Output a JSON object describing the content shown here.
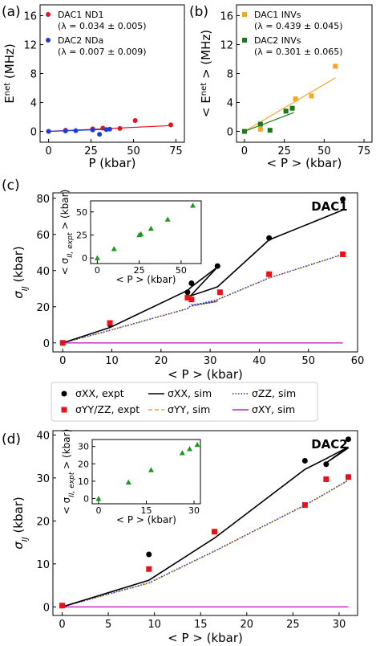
{
  "figure": {
    "panel_labels": [
      "(a)",
      "(b)",
      "(c)",
      "(d)"
    ],
    "legend_cd": [
      {
        "text": "σXX, expt",
        "color": "#000000",
        "marker": "circle"
      },
      {
        "text": "σXX, sim",
        "color": "#000000",
        "marker": "line"
      },
      {
        "text": "σZZ, sim",
        "color": "#1f3bd6",
        "marker": "dotted"
      },
      {
        "text": "σYY/ZZ, expt",
        "color": "#e8121b",
        "marker": "square"
      },
      {
        "text": "σYY, sim",
        "color": "#f5a623",
        "marker": "dashed"
      },
      {
        "text": "σXY, sim",
        "color": "#c020c0",
        "marker": "line"
      }
    ]
  },
  "chart_data": [
    {
      "id": "a",
      "type": "scatter",
      "xlabel": "P (kbar)",
      "ylabel": "E^net (MHz)",
      "xlim": [
        -5,
        80
      ],
      "ylim": [
        -1.5,
        17.5
      ],
      "xticks": [
        0,
        25,
        50,
        75
      ],
      "yticks": [
        0,
        4,
        8,
        12,
        16
      ],
      "legend": [
        {
          "name": "DAC1 ND1",
          "sub": "(λ = 0.034 ± 0.005)",
          "color": "#e8121b"
        },
        {
          "name": "DAC2 NDa",
          "sub": "(λ = 0.007 ± 0.009)",
          "color": "#1f3bd6"
        }
      ],
      "series": [
        {
          "name": "DAC1 ND1",
          "color": "#e8121b",
          "points": [
            [
              0,
              0
            ],
            [
              10,
              0.15
            ],
            [
              26,
              0.35
            ],
            [
              32,
              0.45
            ],
            [
              42,
              0.4
            ],
            [
              51,
              1.5
            ],
            [
              72,
              0.9
            ]
          ],
          "fit": [
            [
              0,
              0
            ],
            [
              72,
              0.8
            ]
          ]
        },
        {
          "name": "DAC2 NDa",
          "color": "#1f3bd6",
          "points": [
            [
              0,
              0
            ],
            [
              10,
              0.05
            ],
            [
              16,
              0.1
            ],
            [
              26,
              0.2
            ],
            [
              30,
              -0.4
            ],
            [
              34,
              0.25
            ],
            [
              36,
              0.3
            ]
          ],
          "fit": [
            [
              0,
              0
            ],
            [
              36,
              0.3
            ]
          ]
        }
      ]
    },
    {
      "id": "b",
      "type": "scatter",
      "xlabel": "< P > (kbar)",
      "ylabel": "< E^net > (MHz)",
      "xlim": [
        -5,
        80
      ],
      "ylim": [
        -1.5,
        17.5
      ],
      "xticks": [
        0,
        25,
        50,
        75
      ],
      "yticks": [
        0,
        4,
        8,
        12,
        16
      ],
      "legend": [
        {
          "name": "DAC1 INVs",
          "sub": "(λ = 0.439 ± 0.045)",
          "color": "#f5a623"
        },
        {
          "name": "DAC2 INVs",
          "sub": "(λ = 0.301 ± 0.065)",
          "color": "#1a7a1a"
        }
      ],
      "series": [
        {
          "name": "DAC1 INVs",
          "color": "#f5a623",
          "points": [
            [
              0,
              0
            ],
            [
              10,
              0.3
            ],
            [
              26,
              2.8
            ],
            [
              32,
              4.5
            ],
            [
              42,
              4.9
            ],
            [
              57,
              9.0
            ]
          ],
          "fit": [
            [
              0,
              0
            ],
            [
              57,
              7.4
            ]
          ]
        },
        {
          "name": "DAC2 INVs",
          "color": "#1a7a1a",
          "points": [
            [
              0,
              0
            ],
            [
              10,
              1.0
            ],
            [
              16,
              0.15
            ],
            [
              26,
              2.8
            ],
            [
              30,
              3.2
            ]
          ],
          "fit": [
            [
              0,
              0
            ],
            [
              31,
              2.6
            ]
          ]
        }
      ]
    },
    {
      "id": "c",
      "type": "line",
      "tag": "DAC1",
      "xlabel": "< P > (kbar)",
      "ylabel": "σIJ (kbar)",
      "xlim": [
        -2,
        60
      ],
      "ylim": [
        -5,
        83
      ],
      "xticks": [
        0,
        10,
        20,
        30,
        40,
        50,
        60
      ],
      "yticks": [
        0,
        20,
        40,
        60,
        80
      ],
      "xx_expt": [
        [
          0,
          0
        ],
        [
          9.6,
          10.2
        ],
        [
          25.4,
          28
        ],
        [
          26.2,
          33
        ],
        [
          31.5,
          42.5
        ],
        [
          42,
          58
        ],
        [
          57,
          79.5
        ]
      ],
      "yyzz_expt": [
        [
          0,
          0
        ],
        [
          9.6,
          11
        ],
        [
          25.4,
          25
        ],
        [
          26.2,
          24
        ],
        [
          32,
          28
        ],
        [
          42,
          38
        ],
        [
          57,
          49
        ]
      ],
      "xx_sim": [
        [
          0,
          0
        ],
        [
          9.6,
          8.5
        ],
        [
          25.4,
          29
        ],
        [
          26.2,
          31
        ],
        [
          31.5,
          42
        ],
        [
          26,
          26
        ],
        [
          31.5,
          31
        ],
        [
          42,
          57
        ],
        [
          57,
          73.5
        ]
      ],
      "zz_sim": [
        [
          0,
          0
        ],
        [
          9.6,
          7
        ],
        [
          25.4,
          19
        ],
        [
          26.2,
          21
        ],
        [
          31.5,
          23
        ],
        [
          26.2,
          20.5
        ],
        [
          31.5,
          24
        ],
        [
          42,
          36
        ],
        [
          57,
          49
        ]
      ],
      "yy_sim": [
        [
          0,
          0
        ],
        [
          9.6,
          6.8
        ],
        [
          25.4,
          18.8
        ],
        [
          26.2,
          20.8
        ],
        [
          31.5,
          22.8
        ],
        [
          26.2,
          20.3
        ],
        [
          31.5,
          23.8
        ],
        [
          42,
          35.8
        ],
        [
          57,
          48.8
        ]
      ],
      "xy_sim": [
        [
          0,
          0
        ],
        [
          57,
          0
        ]
      ],
      "inset": {
        "xlabel": "< P > (kbar)",
        "ylabel": "< σII, expt > (kbar)",
        "xlim": [
          -4,
          62
        ],
        "ylim": [
          -6,
          62
        ],
        "xticks": [
          0,
          25,
          50
        ],
        "yticks": [
          0,
          25,
          50
        ],
        "points": [
          [
            0,
            0
          ],
          [
            10,
            10
          ],
          [
            25,
            25
          ],
          [
            26,
            26
          ],
          [
            32,
            32
          ],
          [
            42,
            42
          ],
          [
            57,
            57
          ]
        ]
      }
    },
    {
      "id": "d",
      "type": "line",
      "tag": "DAC2",
      "xlabel": "< P > (kbar)",
      "ylabel": "σIJ (kbar)",
      "xlim": [
        -1,
        32
      ],
      "ylim": [
        -2,
        41
      ],
      "xticks": [
        0,
        5,
        10,
        15,
        20,
        25,
        30
      ],
      "yticks": [
        0,
        10,
        20,
        30,
        40
      ],
      "xx_expt": [
        [
          0,
          0.3
        ],
        [
          9.4,
          12.2
        ],
        [
          16.5,
          17.5
        ],
        [
          26.3,
          34
        ],
        [
          28.6,
          33.2
        ],
        [
          31,
          39
        ]
      ],
      "yyzz_expt": [
        [
          0,
          0.3
        ],
        [
          9.4,
          8.8
        ],
        [
          16.5,
          17.5
        ],
        [
          26.3,
          23.7
        ],
        [
          28.6,
          29.7
        ],
        [
          31,
          30.2
        ]
      ],
      "xx_sim": [
        [
          0,
          0
        ],
        [
          9.4,
          6.2
        ],
        [
          16.5,
          16
        ],
        [
          26.3,
          32
        ],
        [
          28.6,
          34.5
        ],
        [
          31,
          37.2
        ],
        [
          28.6,
          33.5
        ],
        [
          31,
          37
        ]
      ],
      "zz_sim": [
        [
          0,
          0
        ],
        [
          9.4,
          5.6
        ],
        [
          16.5,
          13
        ],
        [
          26.3,
          23.7
        ],
        [
          28.6,
          26.5
        ],
        [
          31,
          29.5
        ]
      ],
      "yy_sim": [
        [
          0,
          0
        ],
        [
          9.4,
          5.5
        ],
        [
          16.5,
          12.9
        ],
        [
          26.3,
          23.6
        ],
        [
          28.6,
          26.4
        ],
        [
          31,
          29.4
        ]
      ],
      "xy_sim": [
        [
          0,
          0
        ],
        [
          31,
          0
        ]
      ],
      "inset": {
        "xlabel": "< P > (kbar)",
        "ylabel": "< σII, expt > (kbar)",
        "xlim": [
          -2,
          32
        ],
        "ylim": [
          -3,
          34
        ],
        "xticks": [
          0,
          15,
          30
        ],
        "yticks": [
          0,
          10,
          20,
          30
        ],
        "points": [
          [
            0,
            0
          ],
          [
            9.4,
            9.4
          ],
          [
            16.5,
            16.5
          ],
          [
            26.3,
            26.3
          ],
          [
            28.6,
            28.6
          ],
          [
            31,
            31
          ]
        ]
      }
    }
  ]
}
